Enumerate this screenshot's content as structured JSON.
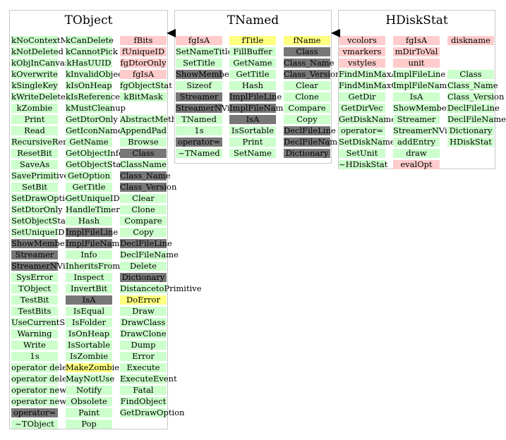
{
  "panels": [
    {
      "title": "TObject",
      "columns": [
        [
          {
            "t": "kNoContextMenu",
            "c": "g"
          },
          {
            "t": "kNotDeleted",
            "c": "g"
          },
          {
            "t": "kObjInCanvas",
            "c": "g"
          },
          {
            "t": "kOverwrite",
            "c": "g"
          },
          {
            "t": "kSingleKey",
            "c": "g"
          },
          {
            "t": "kWriteDelete",
            "c": "g"
          },
          {
            "t": "kZombie",
            "c": "g"
          },
          {
            "t": "Print",
            "c": "g"
          },
          {
            "t": "Read",
            "c": "g"
          },
          {
            "t": "RecursiveRemove",
            "c": "g"
          },
          {
            "t": "ResetBit",
            "c": "g"
          },
          {
            "t": "SaveAs",
            "c": "g"
          },
          {
            "t": "SavePrimitive",
            "c": "g"
          },
          {
            "t": "SetBit",
            "c": "g"
          },
          {
            "t": "SetDrawOption",
            "c": "g"
          },
          {
            "t": "SetDtorOnly",
            "c": "g"
          },
          {
            "t": "SetObjectStat",
            "c": "g"
          },
          {
            "t": "SetUniqueID",
            "c": "g"
          },
          {
            "t": "ShowMembers",
            "c": "d"
          },
          {
            "t": "Streamer",
            "c": "d"
          },
          {
            "t": "StreamerNVirtual",
            "c": "d"
          },
          {
            "t": "SysError",
            "c": "g"
          },
          {
            "t": "TObject",
            "c": "g"
          },
          {
            "t": "TestBit",
            "c": "g"
          },
          {
            "t": "TestBits",
            "c": "g"
          },
          {
            "t": "UseCurrentStyle",
            "c": "g"
          },
          {
            "t": "Warning",
            "c": "g"
          },
          {
            "t": "Write",
            "c": "g"
          },
          {
            "t": "1s",
            "c": "g"
          },
          {
            "t": "operator delete",
            "c": "g"
          },
          {
            "t": "operator delete[]",
            "c": "g"
          },
          {
            "t": "operator new",
            "c": "g"
          },
          {
            "t": "operator new[]",
            "c": "g"
          },
          {
            "t": "operator=",
            "c": "d"
          },
          {
            "t": "~TObject",
            "c": "g"
          }
        ],
        [
          {
            "t": "kCanDelete",
            "c": "g"
          },
          {
            "t": "kCannotPick",
            "c": "g"
          },
          {
            "t": "kHasUUID",
            "c": "g"
          },
          {
            "t": "kInvalidObject",
            "c": "g"
          },
          {
            "t": "kIsOnHeap",
            "c": "g"
          },
          {
            "t": "kIsReferenced",
            "c": "g"
          },
          {
            "t": "kMustCleanup",
            "c": "g"
          },
          {
            "t": "GetDtorOnly",
            "c": "g"
          },
          {
            "t": "GetIconName",
            "c": "g"
          },
          {
            "t": "GetName",
            "c": "g"
          },
          {
            "t": "GetObjectInfo",
            "c": "g"
          },
          {
            "t": "GetObjectStat",
            "c": "g"
          },
          {
            "t": "GetOption",
            "c": "g"
          },
          {
            "t": "GetTitle",
            "c": "g"
          },
          {
            "t": "GetUniqueID",
            "c": "g"
          },
          {
            "t": "HandleTimer",
            "c": "g"
          },
          {
            "t": "Hash",
            "c": "g"
          },
          {
            "t": "ImplFileLine",
            "c": "d"
          },
          {
            "t": "ImplFileName",
            "c": "d"
          },
          {
            "t": "Info",
            "c": "g"
          },
          {
            "t": "InheritsFrom",
            "c": "g"
          },
          {
            "t": "Inspect",
            "c": "g"
          },
          {
            "t": "InvertBit",
            "c": "g"
          },
          {
            "t": "IsA",
            "c": "d"
          },
          {
            "t": "IsEqual",
            "c": "g"
          },
          {
            "t": "IsFolder",
            "c": "g"
          },
          {
            "t": "IsOnHeap",
            "c": "g"
          },
          {
            "t": "IsSortable",
            "c": "g"
          },
          {
            "t": "IsZombie",
            "c": "g"
          },
          {
            "t": "MakeZombie",
            "c": "y"
          },
          {
            "t": "MayNotUse",
            "c": "g"
          },
          {
            "t": "Notify",
            "c": "g"
          },
          {
            "t": "Obsolete",
            "c": "g"
          },
          {
            "t": "Paint",
            "c": "g"
          },
          {
            "t": "Pop",
            "c": "g"
          }
        ],
        [
          {
            "t": "fBits",
            "c": "p"
          },
          {
            "t": "fUniqueID",
            "c": "p"
          },
          {
            "t": "fgDtorOnly",
            "c": "p"
          },
          {
            "t": "fgIsA",
            "c": "p"
          },
          {
            "t": "fgObjectStat",
            "c": "g"
          },
          {
            "t": "kBitMask",
            "c": "g"
          },
          {
            "t": "",
            "c": "w"
          },
          {
            "t": "AbstractMethod",
            "c": "g"
          },
          {
            "t": "AppendPad",
            "c": "g"
          },
          {
            "t": "Browse",
            "c": "g"
          },
          {
            "t": "Class",
            "c": "d"
          },
          {
            "t": "ClassName",
            "c": "g"
          },
          {
            "t": "Class_Name",
            "c": "d"
          },
          {
            "t": "Class_Version",
            "c": "d"
          },
          {
            "t": "Clear",
            "c": "g"
          },
          {
            "t": "Clone",
            "c": "g"
          },
          {
            "t": "Compare",
            "c": "g"
          },
          {
            "t": "Copy",
            "c": "g"
          },
          {
            "t": "DeclFileLine",
            "c": "d"
          },
          {
            "t": "DeclFileName",
            "c": "g"
          },
          {
            "t": "Delete",
            "c": "g"
          },
          {
            "t": "Dictionary",
            "c": "d"
          },
          {
            "t": "DistancetoPrimitive",
            "c": "g"
          },
          {
            "t": "DoError",
            "c": "y"
          },
          {
            "t": "Draw",
            "c": "g"
          },
          {
            "t": "DrawClass",
            "c": "g"
          },
          {
            "t": "DrawClone",
            "c": "g"
          },
          {
            "t": "Dump",
            "c": "g"
          },
          {
            "t": "Error",
            "c": "g"
          },
          {
            "t": "Execute",
            "c": "g"
          },
          {
            "t": "ExecuteEvent",
            "c": "g"
          },
          {
            "t": "Fatal",
            "c": "g"
          },
          {
            "t": "FindObject",
            "c": "g"
          },
          {
            "t": "GetDrawOption",
            "c": "g"
          }
        ]
      ]
    },
    {
      "title": "TNamed",
      "columns": [
        [
          {
            "t": "fgIsA",
            "c": "p"
          },
          {
            "t": "SetNameTitle",
            "c": "g"
          },
          {
            "t": "SetTitle",
            "c": "g"
          },
          {
            "t": "ShowMembers",
            "c": "d"
          },
          {
            "t": "Sizeof",
            "c": "g"
          },
          {
            "t": "Streamer",
            "c": "d"
          },
          {
            "t": "StreamerNVirtual",
            "c": "d"
          },
          {
            "t": "TNamed",
            "c": "g"
          },
          {
            "t": "1s",
            "c": "g"
          },
          {
            "t": "operator=",
            "c": "d"
          },
          {
            "t": "~TNamed",
            "c": "g"
          }
        ],
        [
          {
            "t": "fTitle",
            "c": "y"
          },
          {
            "t": "FillBuffer",
            "c": "g"
          },
          {
            "t": "GetName",
            "c": "g"
          },
          {
            "t": "GetTitle",
            "c": "g"
          },
          {
            "t": "Hash",
            "c": "g"
          },
          {
            "t": "ImplFileLine",
            "c": "d"
          },
          {
            "t": "ImplFileName",
            "c": "d"
          },
          {
            "t": "IsA",
            "c": "d"
          },
          {
            "t": "IsSortable",
            "c": "g"
          },
          {
            "t": "Print",
            "c": "g"
          },
          {
            "t": "SetName",
            "c": "g"
          }
        ],
        [
          {
            "t": "fName",
            "c": "y"
          },
          {
            "t": "Class",
            "c": "d"
          },
          {
            "t": "Class_Name",
            "c": "d"
          },
          {
            "t": "Class_Version",
            "c": "d"
          },
          {
            "t": "Clear",
            "c": "g"
          },
          {
            "t": "Clone",
            "c": "g"
          },
          {
            "t": "Compare",
            "c": "g"
          },
          {
            "t": "Copy",
            "c": "g"
          },
          {
            "t": "DeclFileLine",
            "c": "d"
          },
          {
            "t": "DeclFileName",
            "c": "d"
          },
          {
            "t": "Dictionary",
            "c": "d"
          }
        ]
      ]
    },
    {
      "title": "HDiskStat",
      "columns": [
        [
          {
            "t": "vcolors",
            "c": "p"
          },
          {
            "t": "vmarkers",
            "c": "p"
          },
          {
            "t": "vstyles",
            "c": "p"
          },
          {
            "t": "FindMinMaxAll",
            "c": "g"
          },
          {
            "t": "FindMinMaxGraph",
            "c": "g"
          },
          {
            "t": "GetDir",
            "c": "g"
          },
          {
            "t": "GetDirVec",
            "c": "g"
          },
          {
            "t": "GetDiskName",
            "c": "g"
          },
          {
            "t": "operator=",
            "c": "g"
          },
          {
            "t": "SetDiskName",
            "c": "g"
          },
          {
            "t": "SetUnit",
            "c": "g"
          },
          {
            "t": "~HDiskStat",
            "c": "g"
          }
        ],
        [
          {
            "t": "fgIsA",
            "c": "p"
          },
          {
            "t": "mDirToVal",
            "c": "p"
          },
          {
            "t": "unit",
            "c": "p"
          },
          {
            "t": "ImplFileLine",
            "c": "g"
          },
          {
            "t": "ImplFileName",
            "c": "g"
          },
          {
            "t": "IsA",
            "c": "g"
          },
          {
            "t": "ShowMembers",
            "c": "g"
          },
          {
            "t": "Streamer",
            "c": "g"
          },
          {
            "t": "StreamerNVirtual",
            "c": "g"
          },
          {
            "t": "addEntry",
            "c": "g"
          },
          {
            "t": "draw",
            "c": "g"
          },
          {
            "t": "evalOpt",
            "c": "p"
          }
        ],
        [
          {
            "t": "diskname",
            "c": "p"
          },
          {
            "t": "",
            "c": "w"
          },
          {
            "t": "",
            "c": "w"
          },
          {
            "t": "Class",
            "c": "g"
          },
          {
            "t": "Class_Name",
            "c": "g"
          },
          {
            "t": "Class_Version",
            "c": "g"
          },
          {
            "t": "DeclFileLine",
            "c": "g"
          },
          {
            "t": "DeclFileName",
            "c": "g"
          },
          {
            "t": "Dictionary",
            "c": "g"
          },
          {
            "t": "HDiskStat",
            "c": "g"
          }
        ]
      ]
    }
  ],
  "arrow_color": "#000000"
}
